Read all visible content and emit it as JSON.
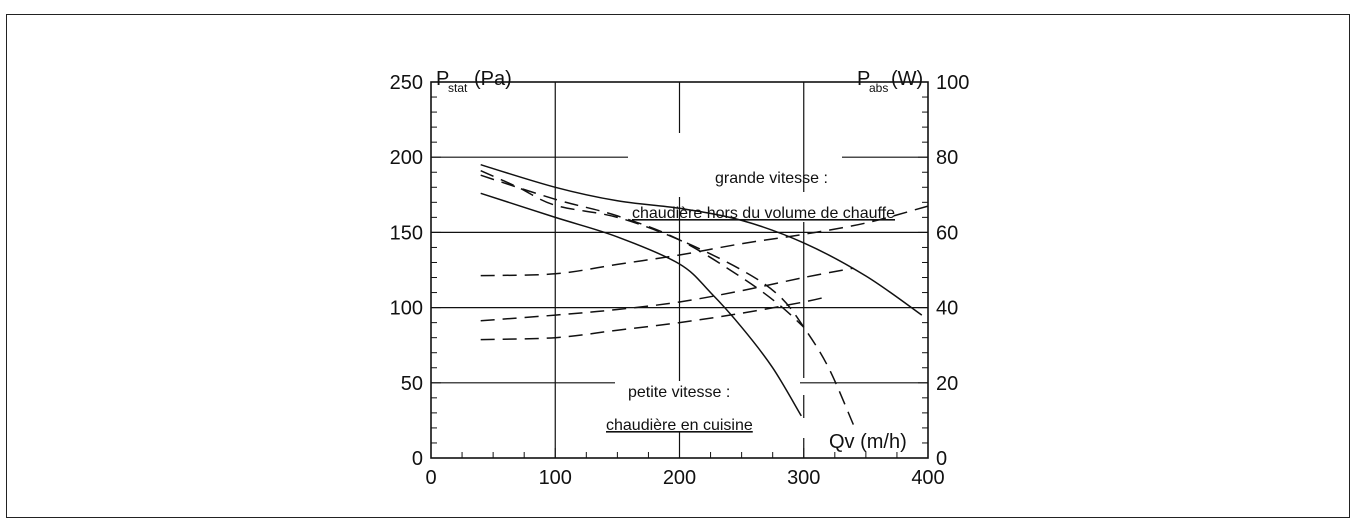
{
  "chart_data": {
    "type": "line",
    "left_axis": {
      "title_main": "P",
      "title_sub": "stat",
      "title_unit": "(Pa)",
      "ylim": [
        0,
        250
      ],
      "ticks": [
        "0",
        "50",
        "100",
        "150",
        "200",
        "250"
      ]
    },
    "right_axis": {
      "title_main": "P",
      "title_sub": "abs",
      "title_unit": "(W)",
      "ylim": [
        0,
        100
      ],
      "ticks": [
        "0",
        "20",
        "40",
        "60",
        "80",
        "100"
      ]
    },
    "x_axis": {
      "xlim": [
        0,
        400
      ],
      "ticks": [
        "0",
        "100",
        "200",
        "300",
        "400"
      ],
      "label": "Qv (m/h)"
    },
    "annotations": {
      "high_speed_title": "grande vitesse :",
      "high_speed_sub": "chaudière hors du volume de chauffe",
      "low_speed_title": "petite vitesse :",
      "low_speed_sub": "chaudière en cuisine"
    },
    "series": [
      {
        "style": "solid",
        "axis": "left",
        "points": [
          [
            40,
            195
          ],
          [
            100,
            180
          ],
          [
            150,
            171
          ],
          [
            200,
            166
          ],
          [
            250,
            158
          ],
          [
            300,
            143
          ],
          [
            350,
            121
          ],
          [
            395,
            95
          ]
        ]
      },
      {
        "style": "solid",
        "axis": "left",
        "points": [
          [
            40,
            176
          ],
          [
            100,
            160
          ],
          [
            150,
            147
          ],
          [
            200,
            129
          ],
          [
            225,
            110
          ],
          [
            250,
            87
          ],
          [
            275,
            60
          ],
          [
            298,
            28
          ]
        ]
      },
      {
        "style": "dashed",
        "axis": "left",
        "points": [
          [
            40,
            191
          ],
          [
            70,
            180
          ],
          [
            100,
            168
          ],
          [
            150,
            160
          ],
          [
            200,
            145
          ],
          [
            250,
            125
          ],
          [
            280,
            108
          ],
          [
            300,
            87
          ],
          [
            320,
            60
          ],
          [
            340,
            22
          ]
        ]
      },
      {
        "style": "dashed",
        "axis": "left",
        "points": [
          [
            40,
            188
          ],
          [
            100,
            172
          ],
          [
            150,
            161
          ],
          [
            200,
            145
          ],
          [
            250,
            120
          ],
          [
            280,
            102
          ],
          [
            300,
            87
          ]
        ]
      },
      {
        "style": "dashed",
        "axis": "right",
        "points": [
          [
            40,
            48.5
          ],
          [
            100,
            49
          ],
          [
            150,
            51.5
          ],
          [
            200,
            54
          ],
          [
            250,
            57
          ],
          [
            300,
            59.5
          ],
          [
            350,
            62.5
          ],
          [
            400,
            67
          ]
        ]
      },
      {
        "style": "dashed",
        "axis": "right",
        "points": [
          [
            40,
            36.5
          ],
          [
            100,
            38
          ],
          [
            150,
            39.5
          ],
          [
            200,
            41.5
          ],
          [
            250,
            44.5
          ],
          [
            300,
            48
          ],
          [
            340,
            50.5
          ]
        ]
      },
      {
        "style": "dashed",
        "axis": "right",
        "points": [
          [
            40,
            31.5
          ],
          [
            100,
            32
          ],
          [
            150,
            34
          ],
          [
            200,
            36
          ],
          [
            250,
            38.5
          ],
          [
            300,
            41.5
          ],
          [
            320,
            43
          ]
        ]
      }
    ]
  }
}
